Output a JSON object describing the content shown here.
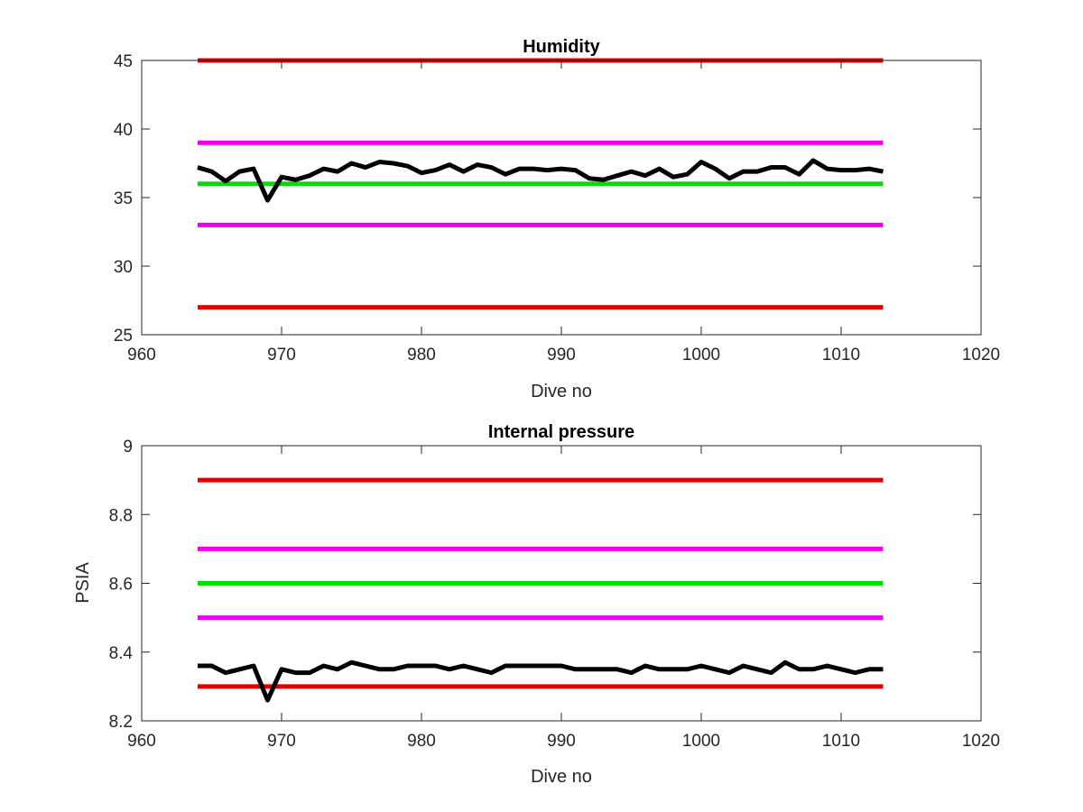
{
  "chart_data": [
    {
      "type": "line",
      "title": "Humidity",
      "xlabel": "Dive no",
      "ylabel": "",
      "xlim": [
        960,
        1020
      ],
      "ylim": [
        25,
        45
      ],
      "xticks": [
        960,
        970,
        980,
        990,
        1000,
        1010,
        1020
      ],
      "yticks": [
        25,
        30,
        35,
        40,
        45
      ],
      "xtick_labels": [
        "960",
        "970",
        "980",
        "990",
        "1000",
        "1010",
        "1020"
      ],
      "ytick_labels": [
        "25",
        "30",
        "35",
        "40",
        "45"
      ],
      "grid": false,
      "series": [
        {
          "color": "#e00000",
          "x": [
            964,
            1013
          ],
          "values": [
            45,
            45
          ]
        },
        {
          "color": "#ee00ee",
          "x": [
            964,
            1013
          ],
          "values": [
            39,
            39
          ]
        },
        {
          "color": "#00e000",
          "x": [
            964,
            1013
          ],
          "values": [
            36,
            36
          ]
        },
        {
          "color": "#ee00ee",
          "x": [
            964,
            1013
          ],
          "values": [
            33,
            33
          ]
        },
        {
          "color": "#e00000",
          "x": [
            964,
            1013
          ],
          "values": [
            27,
            27
          ]
        },
        {
          "color": "#000000",
          "x": [
            964,
            965,
            966,
            967,
            968,
            969,
            970,
            971,
            972,
            973,
            974,
            975,
            976,
            977,
            978,
            979,
            980,
            981,
            982,
            983,
            984,
            985,
            986,
            987,
            988,
            989,
            990,
            991,
            992,
            993,
            994,
            995,
            996,
            997,
            998,
            999,
            1000,
            1001,
            1002,
            1003,
            1004,
            1005,
            1006,
            1007,
            1008,
            1009,
            1010,
            1011,
            1012,
            1013
          ],
          "values": [
            37.2,
            36.9,
            36.2,
            36.9,
            37.1,
            34.8,
            36.5,
            36.3,
            36.6,
            37.1,
            36.9,
            37.5,
            37.2,
            37.6,
            37.5,
            37.3,
            36.8,
            37.0,
            37.4,
            36.9,
            37.4,
            37.2,
            36.7,
            37.1,
            37.1,
            37.0,
            37.1,
            37.0,
            36.4,
            36.3,
            36.6,
            36.9,
            36.6,
            37.1,
            36.5,
            36.7,
            37.6,
            37.1,
            36.4,
            36.9,
            36.9,
            37.2,
            37.2,
            36.7,
            37.7,
            37.1,
            37.0,
            37.0,
            37.1,
            36.9
          ]
        }
      ]
    },
    {
      "type": "line",
      "title": "Internal pressure",
      "xlabel": "Dive no",
      "ylabel": "PSIA",
      "xlim": [
        960,
        1020
      ],
      "ylim": [
        8.2,
        9.0
      ],
      "xticks": [
        960,
        970,
        980,
        990,
        1000,
        1010,
        1020
      ],
      "yticks": [
        8.2,
        8.4,
        8.6,
        8.8,
        9.0
      ],
      "xtick_labels": [
        "960",
        "970",
        "980",
        "990",
        "1000",
        "1010",
        "1020"
      ],
      "ytick_labels": [
        "8.2",
        "8.4",
        "8.6",
        "8.8",
        "9"
      ],
      "grid": false,
      "series": [
        {
          "color": "#e00000",
          "x": [
            964,
            1013
          ],
          "values": [
            8.9,
            8.9
          ]
        },
        {
          "color": "#ee00ee",
          "x": [
            964,
            1013
          ],
          "values": [
            8.7,
            8.7
          ]
        },
        {
          "color": "#00e000",
          "x": [
            964,
            1013
          ],
          "values": [
            8.6,
            8.6
          ]
        },
        {
          "color": "#ee00ee",
          "x": [
            964,
            1013
          ],
          "values": [
            8.5,
            8.5
          ]
        },
        {
          "color": "#e00000",
          "x": [
            964,
            1013
          ],
          "values": [
            8.3,
            8.3
          ]
        },
        {
          "color": "#000000",
          "x": [
            964,
            965,
            966,
            967,
            968,
            969,
            970,
            971,
            972,
            973,
            974,
            975,
            976,
            977,
            978,
            979,
            980,
            981,
            982,
            983,
            984,
            985,
            986,
            987,
            988,
            989,
            990,
            991,
            992,
            993,
            994,
            995,
            996,
            997,
            998,
            999,
            1000,
            1001,
            1002,
            1003,
            1004,
            1005,
            1006,
            1007,
            1008,
            1009,
            1010,
            1011,
            1012,
            1013
          ],
          "values": [
            8.36,
            8.36,
            8.34,
            8.35,
            8.36,
            8.26,
            8.35,
            8.34,
            8.34,
            8.36,
            8.35,
            8.37,
            8.36,
            8.35,
            8.35,
            8.36,
            8.36,
            8.36,
            8.35,
            8.36,
            8.35,
            8.34,
            8.36,
            8.36,
            8.36,
            8.36,
            8.36,
            8.35,
            8.35,
            8.35,
            8.35,
            8.34,
            8.36,
            8.35,
            8.35,
            8.35,
            8.36,
            8.35,
            8.34,
            8.36,
            8.35,
            8.34,
            8.37,
            8.35,
            8.35,
            8.36,
            8.35,
            8.34,
            8.35,
            8.35
          ]
        }
      ]
    }
  ]
}
